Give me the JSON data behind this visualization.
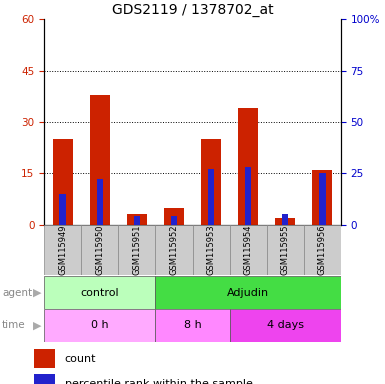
{
  "title": "GDS2119 / 1378702_at",
  "samples": [
    "GSM115949",
    "GSM115950",
    "GSM115951",
    "GSM115952",
    "GSM115953",
    "GSM115954",
    "GSM115955",
    "GSM115956"
  ],
  "count_values": [
    25,
    38,
    3,
    5,
    25,
    34,
    2,
    16
  ],
  "percentile_values": [
    15,
    22,
    4,
    4,
    27,
    28,
    5,
    25
  ],
  "count_color": "#cc2200",
  "percentile_color": "#2222cc",
  "ylim_left": [
    0,
    60
  ],
  "ylim_right": [
    0,
    100
  ],
  "yticks_left": [
    0,
    15,
    30,
    45,
    60
  ],
  "yticks_right": [
    0,
    25,
    50,
    75,
    100
  ],
  "agent_labels": [
    {
      "text": "control",
      "start": 0,
      "end": 3,
      "color": "#bbffbb"
    },
    {
      "text": "Adjudin",
      "start": 3,
      "end": 8,
      "color": "#44dd44"
    }
  ],
  "time_labels": [
    {
      "text": "0 h",
      "start": 0,
      "end": 3,
      "color": "#ffaaff"
    },
    {
      "text": "8 h",
      "start": 3,
      "end": 5,
      "color": "#ff88ff"
    },
    {
      "text": "4 days",
      "start": 5,
      "end": 8,
      "color": "#ee44ee"
    }
  ],
  "legend_count": "count",
  "legend_percentile": "percentile rank within the sample",
  "tick_label_color_left": "#cc2200",
  "tick_label_color_right": "#0000cc"
}
